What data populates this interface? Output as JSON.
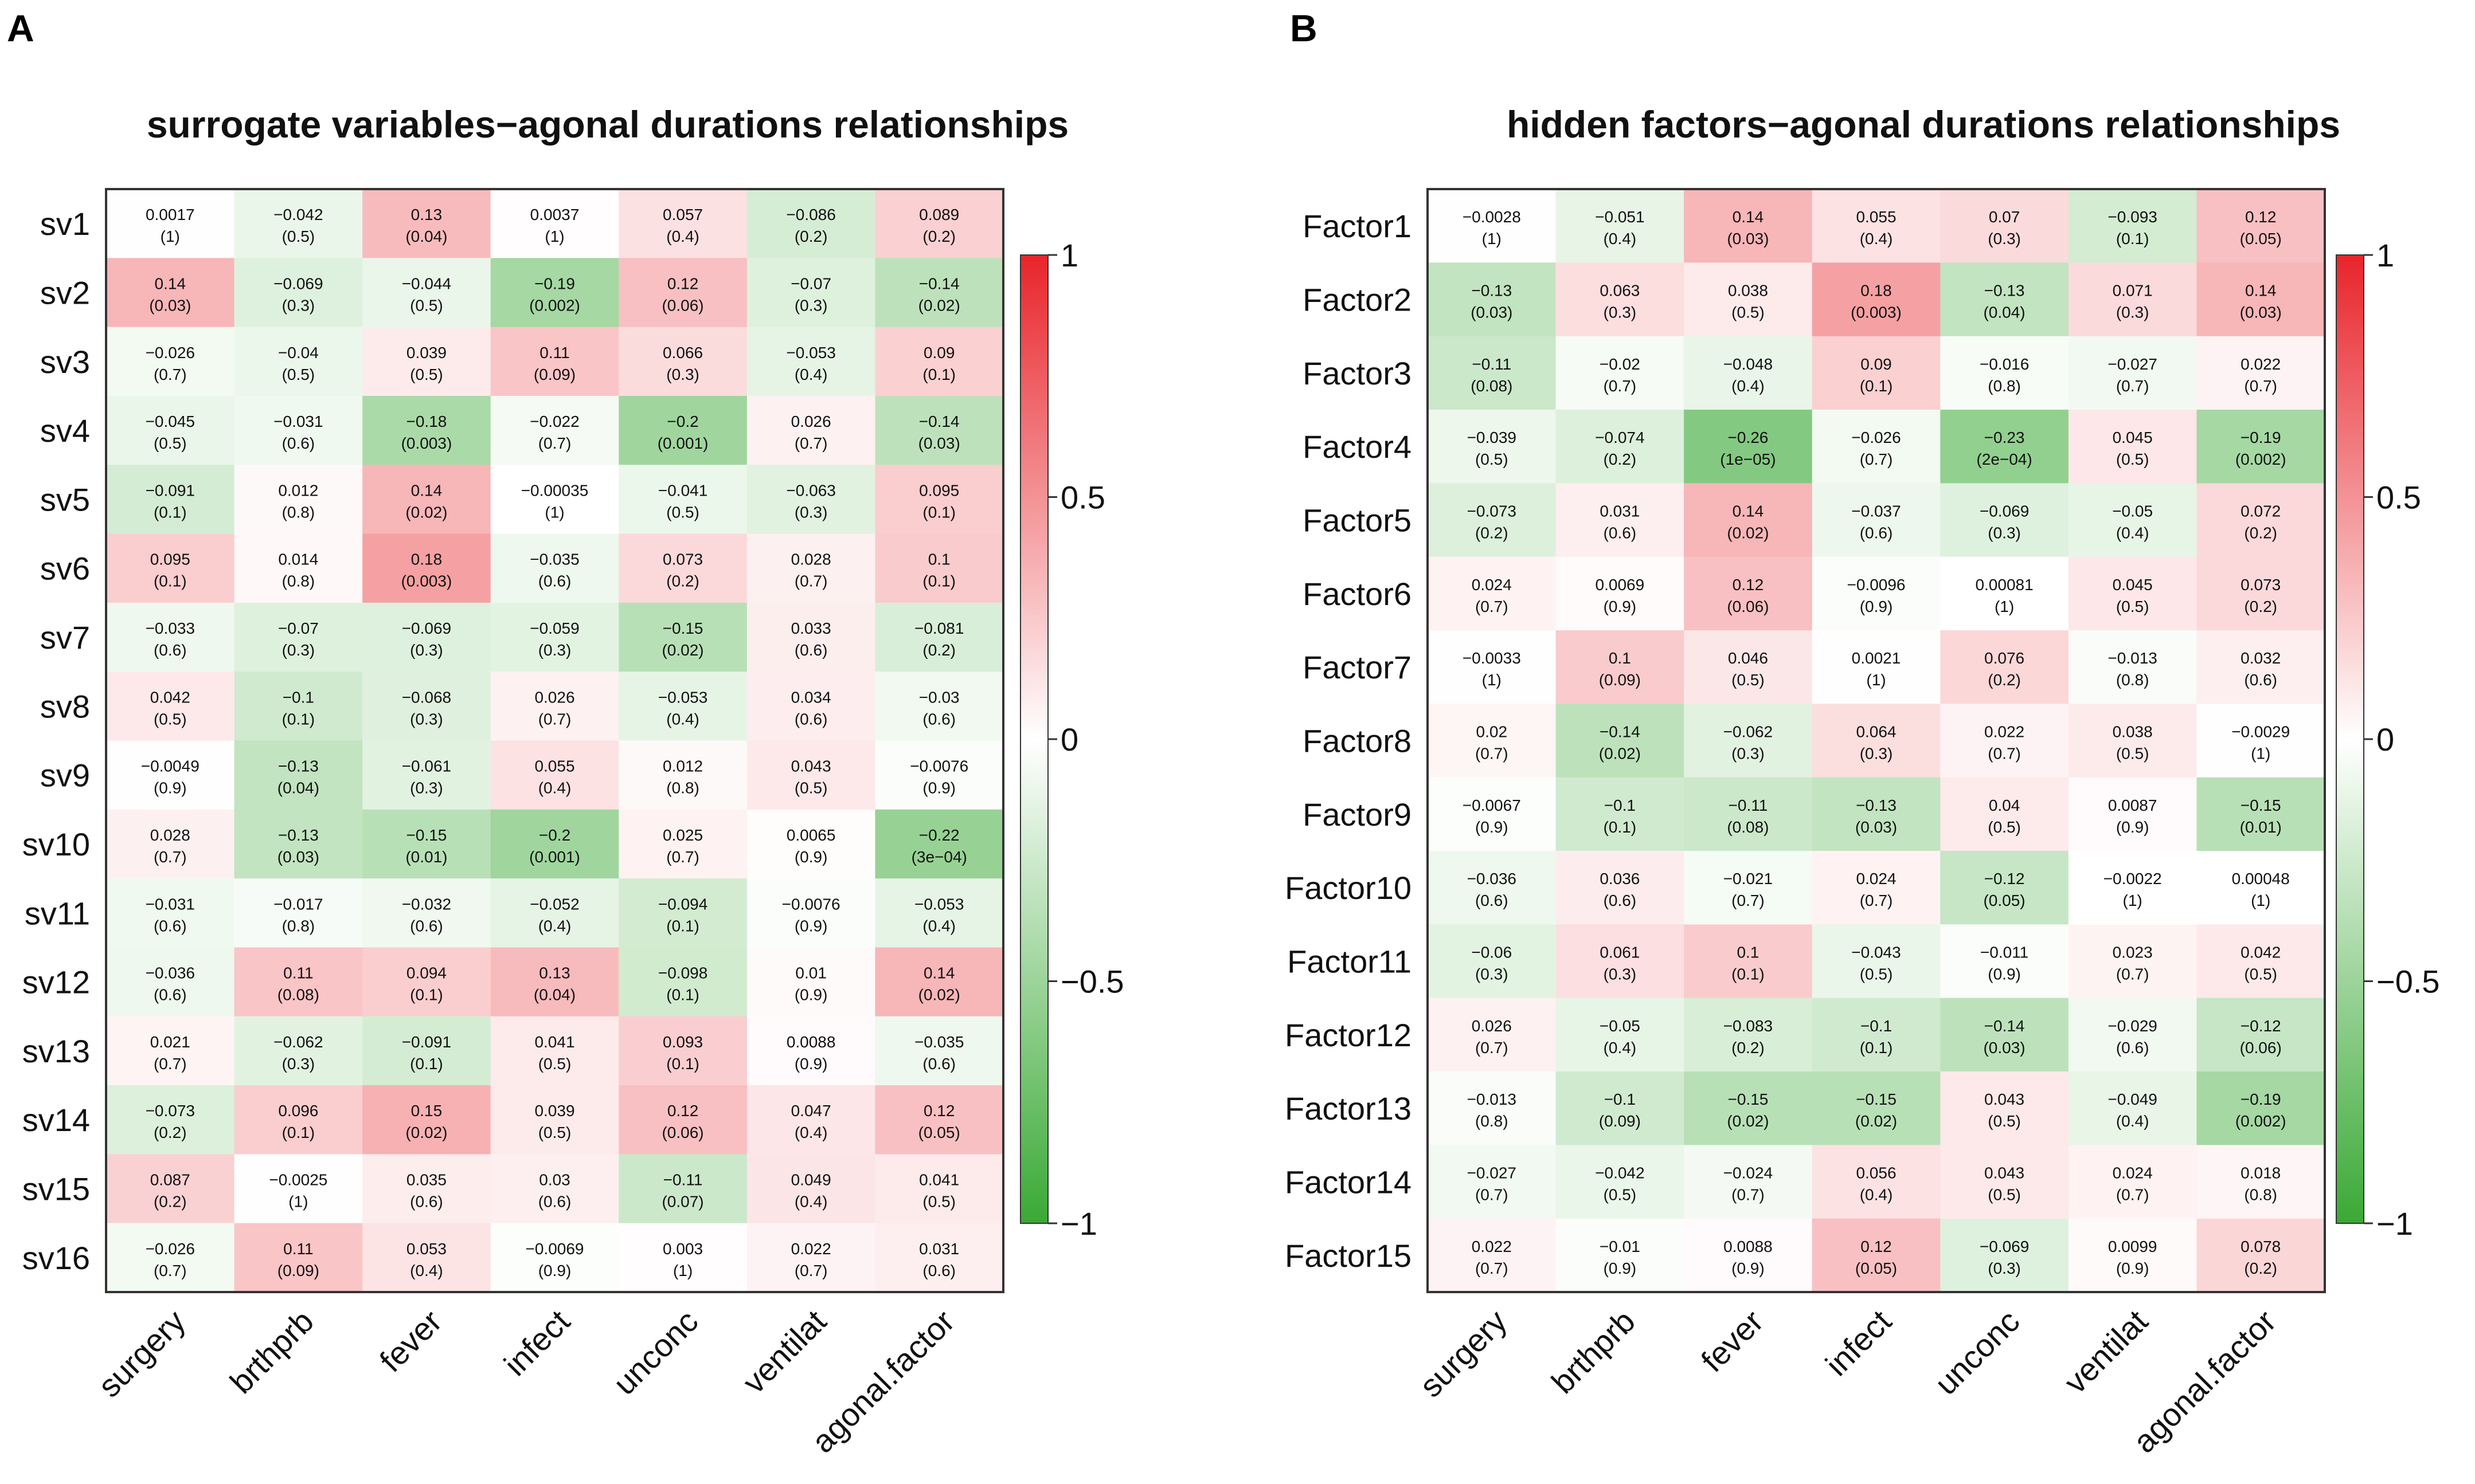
{
  "panels": [
    "A",
    "B"
  ],
  "colorbar": {
    "ticks": [
      "1",
      "0.5",
      "0",
      "−0.5",
      "−1"
    ],
    "tick_values": [
      1,
      0.5,
      0,
      -0.5,
      -1
    ],
    "colors": {
      "positive": "#e8252b",
      "zero": "#ffffff",
      "negative": "#3aa935"
    }
  },
  "chart_data": [
    {
      "type": "heatmap",
      "title": "surrogate variables−agonal durations relationships",
      "columns": [
        "surgery",
        "brthprb",
        "fever",
        "infect",
        "unconc",
        "ventilat",
        "agonal.factor"
      ],
      "rows": [
        "sv1",
        "sv2",
        "sv3",
        "sv4",
        "sv5",
        "sv6",
        "sv7",
        "sv8",
        "sv9",
        "sv10",
        "sv11",
        "sv12",
        "sv13",
        "sv14",
        "sv15",
        "sv16"
      ],
      "range": [
        -1,
        1
      ],
      "cells": [
        [
          [
            "0.0017",
            "(1)"
          ],
          [
            "−0.042",
            "(0.5)"
          ],
          [
            "0.13",
            "(0.04)"
          ],
          [
            "0.0037",
            "(1)"
          ],
          [
            "0.057",
            "(0.4)"
          ],
          [
            "−0.086",
            "(0.2)"
          ],
          [
            "0.089",
            "(0.2)"
          ]
        ],
        [
          [
            "0.14",
            "(0.03)"
          ],
          [
            "−0.069",
            "(0.3)"
          ],
          [
            "−0.044",
            "(0.5)"
          ],
          [
            "−0.19",
            "(0.002)"
          ],
          [
            "0.12",
            "(0.06)"
          ],
          [
            "−0.07",
            "(0.3)"
          ],
          [
            "−0.14",
            "(0.02)"
          ]
        ],
        [
          [
            "−0.026",
            "(0.7)"
          ],
          [
            "−0.04",
            "(0.5)"
          ],
          [
            "0.039",
            "(0.5)"
          ],
          [
            "0.11",
            "(0.09)"
          ],
          [
            "0.066",
            "(0.3)"
          ],
          [
            "−0.053",
            "(0.4)"
          ],
          [
            "0.09",
            "(0.1)"
          ]
        ],
        [
          [
            "−0.045",
            "(0.5)"
          ],
          [
            "−0.031",
            "(0.6)"
          ],
          [
            "−0.18",
            "(0.003)"
          ],
          [
            "−0.022",
            "(0.7)"
          ],
          [
            "−0.2",
            "(0.001)"
          ],
          [
            "0.026",
            "(0.7)"
          ],
          [
            "−0.14",
            "(0.03)"
          ]
        ],
        [
          [
            "−0.091",
            "(0.1)"
          ],
          [
            "0.012",
            "(0.8)"
          ],
          [
            "0.14",
            "(0.02)"
          ],
          [
            "−0.00035",
            "(1)"
          ],
          [
            "−0.041",
            "(0.5)"
          ],
          [
            "−0.063",
            "(0.3)"
          ],
          [
            "0.095",
            "(0.1)"
          ]
        ],
        [
          [
            "0.095",
            "(0.1)"
          ],
          [
            "0.014",
            "(0.8)"
          ],
          [
            "0.18",
            "(0.003)"
          ],
          [
            "−0.035",
            "(0.6)"
          ],
          [
            "0.073",
            "(0.2)"
          ],
          [
            "0.028",
            "(0.7)"
          ],
          [
            "0.1",
            "(0.1)"
          ]
        ],
        [
          [
            "−0.033",
            "(0.6)"
          ],
          [
            "−0.07",
            "(0.3)"
          ],
          [
            "−0.069",
            "(0.3)"
          ],
          [
            "−0.059",
            "(0.3)"
          ],
          [
            "−0.15",
            "(0.02)"
          ],
          [
            "0.033",
            "(0.6)"
          ],
          [
            "−0.081",
            "(0.2)"
          ]
        ],
        [
          [
            "0.042",
            "(0.5)"
          ],
          [
            "−0.1",
            "(0.1)"
          ],
          [
            "−0.068",
            "(0.3)"
          ],
          [
            "0.026",
            "(0.7)"
          ],
          [
            "−0.053",
            "(0.4)"
          ],
          [
            "0.034",
            "(0.6)"
          ],
          [
            "−0.03",
            "(0.6)"
          ]
        ],
        [
          [
            "−0.0049",
            "(0.9)"
          ],
          [
            "−0.13",
            "(0.04)"
          ],
          [
            "−0.061",
            "(0.3)"
          ],
          [
            "0.055",
            "(0.4)"
          ],
          [
            "0.012",
            "(0.8)"
          ],
          [
            "0.043",
            "(0.5)"
          ],
          [
            "−0.0076",
            "(0.9)"
          ]
        ],
        [
          [
            "0.028",
            "(0.7)"
          ],
          [
            "−0.13",
            "(0.03)"
          ],
          [
            "−0.15",
            "(0.01)"
          ],
          [
            "−0.2",
            "(0.001)"
          ],
          [
            "0.025",
            "(0.7)"
          ],
          [
            "0.0065",
            "(0.9)"
          ],
          [
            "−0.22",
            "(3e−04)"
          ]
        ],
        [
          [
            "−0.031",
            "(0.6)"
          ],
          [
            "−0.017",
            "(0.8)"
          ],
          [
            "−0.032",
            "(0.6)"
          ],
          [
            "−0.052",
            "(0.4)"
          ],
          [
            "−0.094",
            "(0.1)"
          ],
          [
            "−0.0076",
            "(0.9)"
          ],
          [
            "−0.053",
            "(0.4)"
          ]
        ],
        [
          [
            "−0.036",
            "(0.6)"
          ],
          [
            "0.11",
            "(0.08)"
          ],
          [
            "0.094",
            "(0.1)"
          ],
          [
            "0.13",
            "(0.04)"
          ],
          [
            "−0.098",
            "(0.1)"
          ],
          [
            "0.01",
            "(0.9)"
          ],
          [
            "0.14",
            "(0.02)"
          ]
        ],
        [
          [
            "0.021",
            "(0.7)"
          ],
          [
            "−0.062",
            "(0.3)"
          ],
          [
            "−0.091",
            "(0.1)"
          ],
          [
            "0.041",
            "(0.5)"
          ],
          [
            "0.093",
            "(0.1)"
          ],
          [
            "0.0088",
            "(0.9)"
          ],
          [
            "−0.035",
            "(0.6)"
          ]
        ],
        [
          [
            "−0.073",
            "(0.2)"
          ],
          [
            "0.096",
            "(0.1)"
          ],
          [
            "0.15",
            "(0.02)"
          ],
          [
            "0.039",
            "(0.5)"
          ],
          [
            "0.12",
            "(0.06)"
          ],
          [
            "0.047",
            "(0.4)"
          ],
          [
            "0.12",
            "(0.05)"
          ]
        ],
        [
          [
            "0.087",
            "(0.2)"
          ],
          [
            "−0.0025",
            "(1)"
          ],
          [
            "0.035",
            "(0.6)"
          ],
          [
            "0.03",
            "(0.6)"
          ],
          [
            "−0.11",
            "(0.07)"
          ],
          [
            "0.049",
            "(0.4)"
          ],
          [
            "0.041",
            "(0.5)"
          ]
        ],
        [
          [
            "−0.026",
            "(0.7)"
          ],
          [
            "0.11",
            "(0.09)"
          ],
          [
            "0.053",
            "(0.4)"
          ],
          [
            "−0.0069",
            "(0.9)"
          ],
          [
            "0.003",
            "(1)"
          ],
          [
            "0.022",
            "(0.7)"
          ],
          [
            "0.031",
            "(0.6)"
          ]
        ]
      ]
    },
    {
      "type": "heatmap",
      "title": "hidden factors−agonal durations relationships",
      "columns": [
        "surgery",
        "brthprb",
        "fever",
        "infect",
        "unconc",
        "ventilat",
        "agonal.factor"
      ],
      "rows": [
        "Factor1",
        "Factor2",
        "Factor3",
        "Factor4",
        "Factor5",
        "Factor6",
        "Factor7",
        "Factor8",
        "Factor9",
        "Factor10",
        "Factor11",
        "Factor12",
        "Factor13",
        "Factor14",
        "Factor15"
      ],
      "range": [
        -1,
        1
      ],
      "cells": [
        [
          [
            "−0.0028",
            "(1)"
          ],
          [
            "−0.051",
            "(0.4)"
          ],
          [
            "0.14",
            "(0.03)"
          ],
          [
            "0.055",
            "(0.4)"
          ],
          [
            "0.07",
            "(0.3)"
          ],
          [
            "−0.093",
            "(0.1)"
          ],
          [
            "0.12",
            "(0.05)"
          ]
        ],
        [
          [
            "−0.13",
            "(0.03)"
          ],
          [
            "0.063",
            "(0.3)"
          ],
          [
            "0.038",
            "(0.5)"
          ],
          [
            "0.18",
            "(0.003)"
          ],
          [
            "−0.13",
            "(0.04)"
          ],
          [
            "0.071",
            "(0.3)"
          ],
          [
            "0.14",
            "(0.03)"
          ]
        ],
        [
          [
            "−0.11",
            "(0.08)"
          ],
          [
            "−0.02",
            "(0.7)"
          ],
          [
            "−0.048",
            "(0.4)"
          ],
          [
            "0.09",
            "(0.1)"
          ],
          [
            "−0.016",
            "(0.8)"
          ],
          [
            "−0.027",
            "(0.7)"
          ],
          [
            "0.022",
            "(0.7)"
          ]
        ],
        [
          [
            "−0.039",
            "(0.5)"
          ],
          [
            "−0.074",
            "(0.2)"
          ],
          [
            "−0.26",
            "(1e−05)"
          ],
          [
            "−0.026",
            "(0.7)"
          ],
          [
            "−0.23",
            "(2e−04)"
          ],
          [
            "0.045",
            "(0.5)"
          ],
          [
            "−0.19",
            "(0.002)"
          ]
        ],
        [
          [
            "−0.073",
            "(0.2)"
          ],
          [
            "0.031",
            "(0.6)"
          ],
          [
            "0.14",
            "(0.02)"
          ],
          [
            "−0.037",
            "(0.6)"
          ],
          [
            "−0.069",
            "(0.3)"
          ],
          [
            "−0.05",
            "(0.4)"
          ],
          [
            "0.072",
            "(0.2)"
          ]
        ],
        [
          [
            "0.024",
            "(0.7)"
          ],
          [
            "0.0069",
            "(0.9)"
          ],
          [
            "0.12",
            "(0.06)"
          ],
          [
            "−0.0096",
            "(0.9)"
          ],
          [
            "0.00081",
            "(1)"
          ],
          [
            "0.045",
            "(0.5)"
          ],
          [
            "0.073",
            "(0.2)"
          ]
        ],
        [
          [
            "−0.0033",
            "(1)"
          ],
          [
            "0.1",
            "(0.09)"
          ],
          [
            "0.046",
            "(0.5)"
          ],
          [
            "0.0021",
            "(1)"
          ],
          [
            "0.076",
            "(0.2)"
          ],
          [
            "−0.013",
            "(0.8)"
          ],
          [
            "0.032",
            "(0.6)"
          ]
        ],
        [
          [
            "0.02",
            "(0.7)"
          ],
          [
            "−0.14",
            "(0.02)"
          ],
          [
            "−0.062",
            "(0.3)"
          ],
          [
            "0.064",
            "(0.3)"
          ],
          [
            "0.022",
            "(0.7)"
          ],
          [
            "0.038",
            "(0.5)"
          ],
          [
            "−0.0029",
            "(1)"
          ]
        ],
        [
          [
            "−0.0067",
            "(0.9)"
          ],
          [
            "−0.1",
            "(0.1)"
          ],
          [
            "−0.11",
            "(0.08)"
          ],
          [
            "−0.13",
            "(0.03)"
          ],
          [
            "0.04",
            "(0.5)"
          ],
          [
            "0.0087",
            "(0.9)"
          ],
          [
            "−0.15",
            "(0.01)"
          ]
        ],
        [
          [
            "−0.036",
            "(0.6)"
          ],
          [
            "0.036",
            "(0.6)"
          ],
          [
            "−0.021",
            "(0.7)"
          ],
          [
            "0.024",
            "(0.7)"
          ],
          [
            "−0.12",
            "(0.05)"
          ],
          [
            "−0.0022",
            "(1)"
          ],
          [
            "0.00048",
            "(1)"
          ]
        ],
        [
          [
            "−0.06",
            "(0.3)"
          ],
          [
            "0.061",
            "(0.3)"
          ],
          [
            "0.1",
            "(0.1)"
          ],
          [
            "−0.043",
            "(0.5)"
          ],
          [
            "−0.011",
            "(0.9)"
          ],
          [
            "0.023",
            "(0.7)"
          ],
          [
            "0.042",
            "(0.5)"
          ]
        ],
        [
          [
            "0.026",
            "(0.7)"
          ],
          [
            "−0.05",
            "(0.4)"
          ],
          [
            "−0.083",
            "(0.2)"
          ],
          [
            "−0.1",
            "(0.1)"
          ],
          [
            "−0.14",
            "(0.03)"
          ],
          [
            "−0.029",
            "(0.6)"
          ],
          [
            "−0.12",
            "(0.06)"
          ]
        ],
        [
          [
            "−0.013",
            "(0.8)"
          ],
          [
            "−0.1",
            "(0.09)"
          ],
          [
            "−0.15",
            "(0.02)"
          ],
          [
            "−0.15",
            "(0.02)"
          ],
          [
            "0.043",
            "(0.5)"
          ],
          [
            "−0.049",
            "(0.4)"
          ],
          [
            "−0.19",
            "(0.002)"
          ]
        ],
        [
          [
            "−0.027",
            "(0.7)"
          ],
          [
            "−0.042",
            "(0.5)"
          ],
          [
            "−0.024",
            "(0.7)"
          ],
          [
            "0.056",
            "(0.4)"
          ],
          [
            "0.043",
            "(0.5)"
          ],
          [
            "0.024",
            "(0.7)"
          ],
          [
            "0.018",
            "(0.8)"
          ]
        ],
        [
          [
            "0.022",
            "(0.7)"
          ],
          [
            "−0.01",
            "(0.9)"
          ],
          [
            "0.0088",
            "(0.9)"
          ],
          [
            "0.12",
            "(0.05)"
          ],
          [
            "−0.069",
            "(0.3)"
          ],
          [
            "0.0099",
            "(0.9)"
          ],
          [
            "0.078",
            "(0.2)"
          ]
        ]
      ]
    }
  ]
}
